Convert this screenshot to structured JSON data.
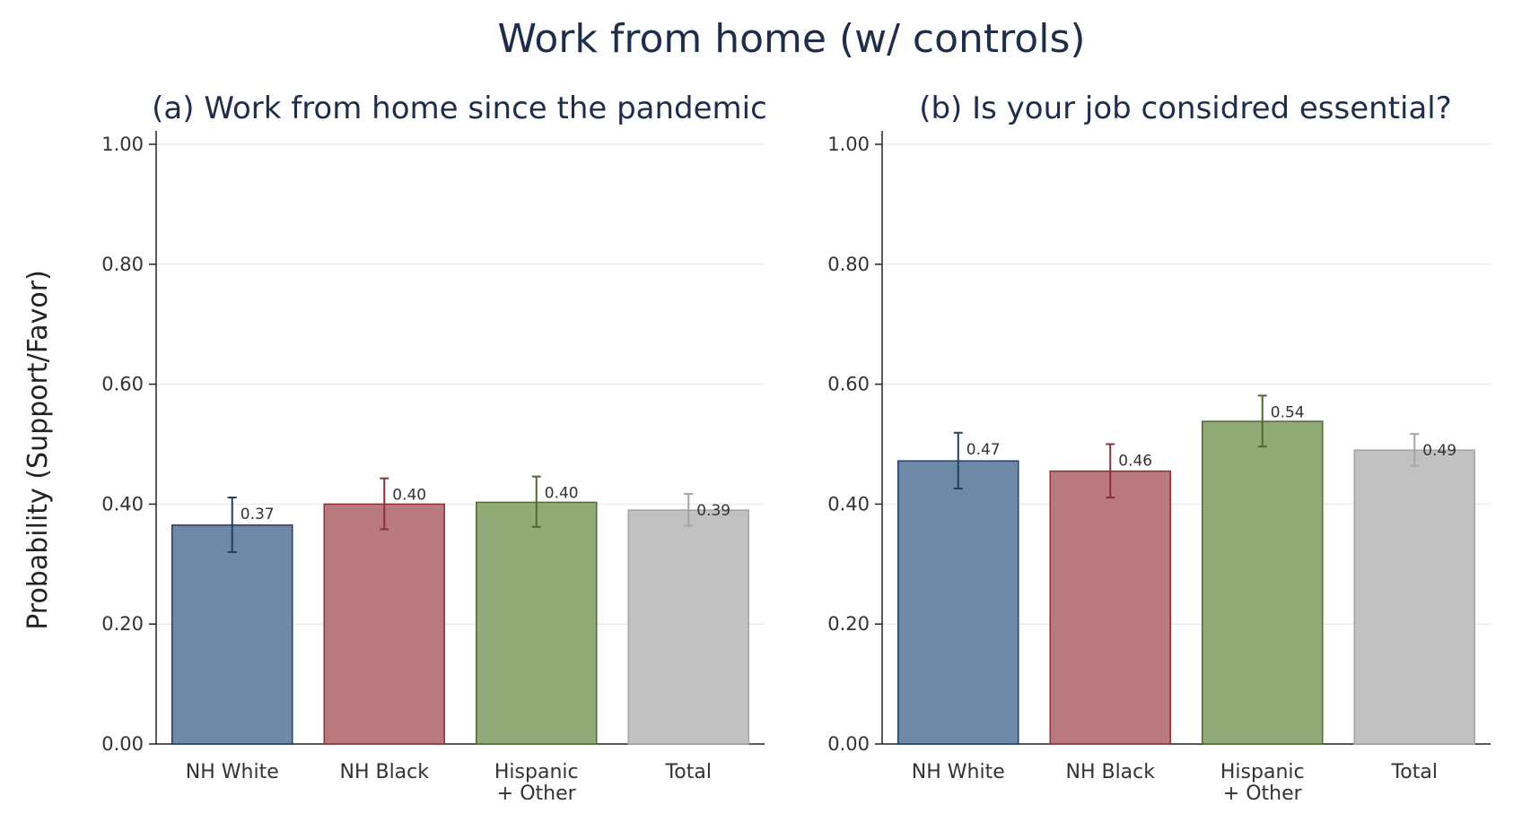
{
  "figure": {
    "title": "Work from home (w/ controls)",
    "ylabel": "Probability (Support/Favor)"
  },
  "chart_data": [
    {
      "type": "bar",
      "title": "(a) Work from home since the pandemic",
      "xlabel": "",
      "ylabel": "Probability (Support/Favor)",
      "ylim": [
        0,
        1
      ],
      "yticks": [
        "0.00",
        "0.20",
        "0.40",
        "0.60",
        "0.80",
        "1.00"
      ],
      "grid": true,
      "categories": [
        [
          "NH White"
        ],
        [
          "NH Black"
        ],
        [
          "Hispanic",
          "+ Other"
        ],
        [
          "Total"
        ]
      ],
      "values": [
        0.365,
        0.4,
        0.403,
        0.39
      ],
      "ci_low": [
        0.32,
        0.358,
        0.362,
        0.364
      ],
      "ci_high": [
        0.411,
        0.443,
        0.446,
        0.417
      ],
      "data_labels": [
        "0.37",
        "0.40",
        "0.40",
        "0.39"
      ],
      "colors": [
        "#6e89a5",
        "#b87a7e",
        "#92a978",
        "#c1c1c1"
      ],
      "edge_colors": [
        "#1f3f66",
        "#8e2f37",
        "#4e6a2f",
        "#a5a5a5"
      ]
    },
    {
      "type": "bar",
      "title": "(b) Is your job consid­red essential?",
      "xlabel": "",
      "ylabel": "Probability (Support/Favor)",
      "ylim": [
        0,
        1
      ],
      "yticks": [
        "0.00",
        "0.20",
        "0.40",
        "0.60",
        "0.80",
        "1.00"
      ],
      "grid": true,
      "categories": [
        [
          "NH White"
        ],
        [
          "NH Black"
        ],
        [
          "Hispanic",
          "+ Other"
        ],
        [
          "Total"
        ]
      ],
      "values": [
        0.472,
        0.455,
        0.538,
        0.49
      ],
      "ci_low": [
        0.426,
        0.411,
        0.496,
        0.464
      ],
      "ci_high": [
        0.519,
        0.5,
        0.581,
        0.517
      ],
      "data_labels": [
        "0.47",
        "0.46",
        "0.54",
        "0.49"
      ],
      "colors": [
        "#6e89a5",
        "#b87a7e",
        "#92a978",
        "#c1c1c1"
      ],
      "edge_colors": [
        "#1f3f66",
        "#8e2f37",
        "#4e6a2f",
        "#a5a5a5"
      ]
    }
  ]
}
